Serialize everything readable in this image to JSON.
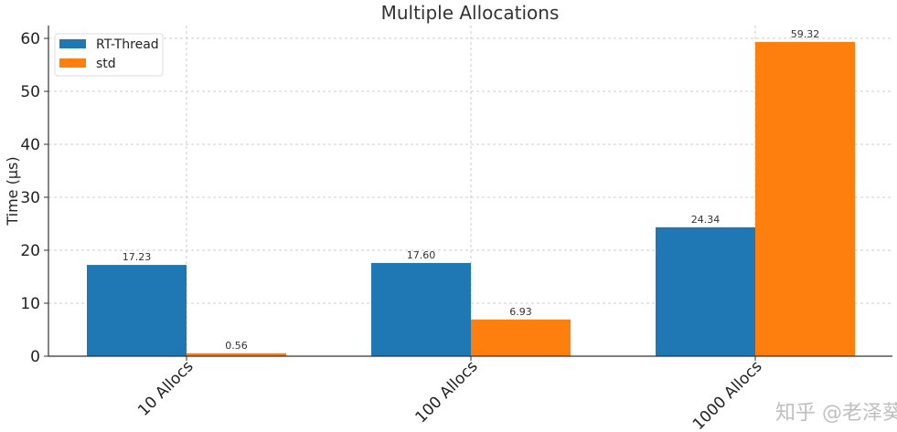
{
  "chart_data": {
    "type": "bar",
    "title": "Multiple Allocations",
    "xlabel": "",
    "ylabel": "Time (µs)",
    "categories": [
      "10 Allocs",
      "100 Allocs",
      "1000 Allocs"
    ],
    "series": [
      {
        "name": "RT-Thread",
        "color": "#1f77b4",
        "values": [
          17.23,
          17.6,
          24.34
        ],
        "labels": [
          "17.23",
          "17.60",
          "24.34"
        ]
      },
      {
        "name": "std",
        "color": "#ff7f0e",
        "values": [
          0.56,
          6.93,
          59.32
        ],
        "labels": [
          "0.56",
          "6.93",
          "59.32"
        ]
      }
    ],
    "ylim": [
      0,
      62
    ],
    "yticks": [
      0,
      10,
      20,
      30,
      40,
      50,
      60
    ],
    "grid": true,
    "legend": "top-left"
  },
  "watermark": "知乎 @老泽葵"
}
